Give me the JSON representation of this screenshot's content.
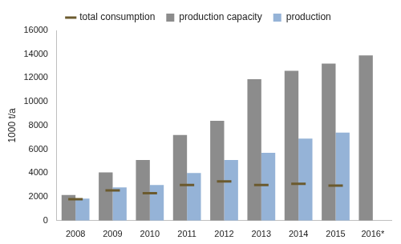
{
  "chart_data": {
    "type": "bar",
    "y_label": "1000 t/a",
    "categories": [
      "2008",
      "2009",
      "2010",
      "2011",
      "2012",
      "2013",
      "2014",
      "2015",
      "2016*"
    ],
    "series": [
      {
        "name": "production capacity",
        "type": "bar",
        "color": "#8c8c8c",
        "values": [
          2150,
          4050,
          5100,
          7200,
          8400,
          11900,
          12600,
          13200,
          13900
        ]
      },
      {
        "name": "production",
        "type": "bar",
        "color": "#95b3d7",
        "values": [
          1850,
          2800,
          3000,
          4000,
          5100,
          5700,
          6900,
          7400,
          null
        ]
      },
      {
        "name": "total consumption",
        "type": "line",
        "color": "#6b5a2e",
        "marker": "dash",
        "line_style": "none",
        "values": [
          1800,
          2550,
          2300,
          3000,
          3300,
          3000,
          3100,
          2950,
          null
        ]
      }
    ],
    "ylim": [
      0,
      16000
    ],
    "yticks": [
      0,
      2000,
      4000,
      6000,
      8000,
      10000,
      12000,
      14000,
      16000
    ],
    "grid": false,
    "legend": "top"
  }
}
